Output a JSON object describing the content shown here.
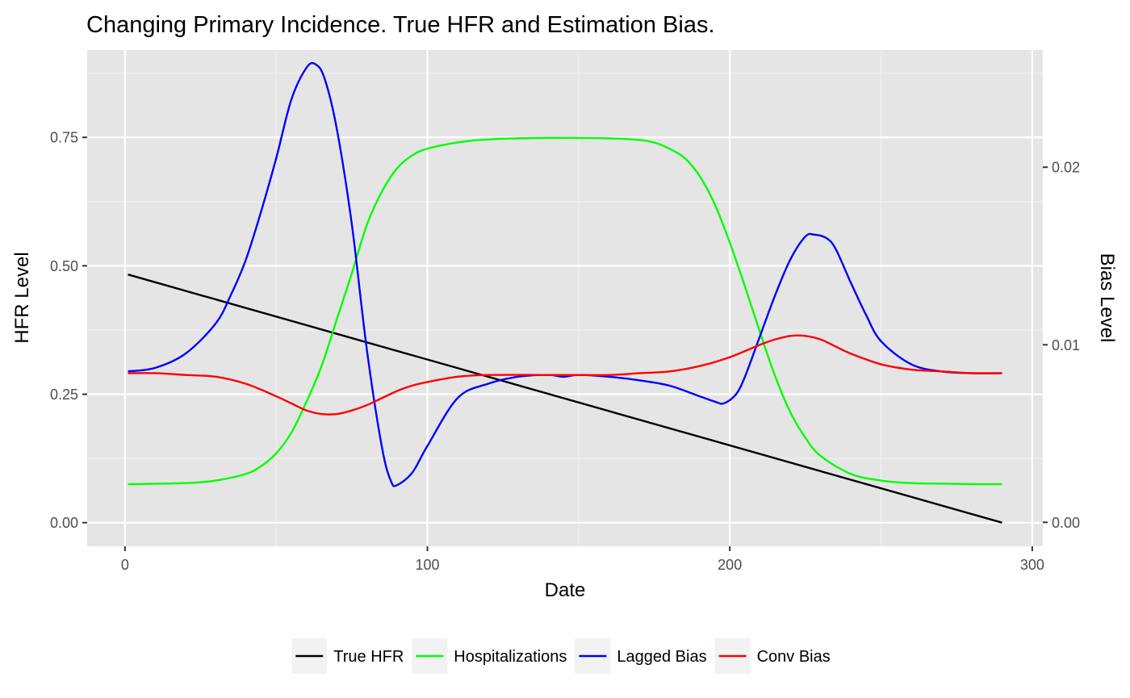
{
  "chart_data": {
    "type": "line",
    "title": "Changing Primary Incidence. True HFR and Estimation Bias.",
    "xlabel": "Date",
    "ylabel": "HFR Level",
    "y2label": "Bias Level",
    "xlim": [
      -12.5,
      303.5
    ],
    "ylim": [
      -0.046,
      0.92
    ],
    "y2lim": [
      -0.00135,
      0.0266
    ],
    "x_ticks": [
      0,
      100,
      200,
      300
    ],
    "y_ticks": [
      0.0,
      0.25,
      0.5,
      0.75
    ],
    "y_tick_labels": [
      "0.00",
      "0.25",
      "0.50",
      "0.75"
    ],
    "y2_ticks": [
      0.0,
      0.01,
      0.02
    ],
    "y2_tick_labels": [
      "0.00",
      "0.01",
      "0.02"
    ],
    "grid": true,
    "legend_position": "bottom",
    "legend": [
      "True HFR",
      "Hospitalizations",
      "Lagged Bias",
      "Conv Bias"
    ],
    "colors": {
      "panel": "#e5e5e5",
      "grid_major": "#ffffff",
      "grid_minor": "#f2f2f2",
      "tick": "#333333",
      "true_hfr": "#000000",
      "hospitalizations": "#00ff00",
      "lagged_bias": "#0000ff",
      "conv_bias": "#ff0000"
    },
    "series": [
      {
        "name": "True HFR",
        "axis": "left",
        "color": "#000000",
        "x": [
          1,
          290
        ],
        "y": [
          0.483,
          0.0
        ]
      },
      {
        "name": "Hospitalizations",
        "axis": "left",
        "color": "#00ff00",
        "x": [
          1,
          20,
          30,
          40,
          45,
          50,
          55,
          60,
          65,
          70,
          75,
          80,
          85,
          90,
          95,
          100,
          110,
          120,
          140,
          160,
          170,
          175,
          180,
          185,
          190,
          195,
          200,
          205,
          210,
          215,
          220,
          225,
          230,
          240,
          250,
          260,
          270,
          280,
          290
        ],
        "y": [
          0.075,
          0.077,
          0.082,
          0.095,
          0.11,
          0.135,
          0.175,
          0.235,
          0.305,
          0.395,
          0.485,
          0.58,
          0.645,
          0.69,
          0.715,
          0.728,
          0.74,
          0.746,
          0.749,
          0.748,
          0.745,
          0.74,
          0.728,
          0.71,
          0.675,
          0.62,
          0.545,
          0.46,
          0.37,
          0.285,
          0.215,
          0.165,
          0.13,
          0.095,
          0.082,
          0.077,
          0.076,
          0.075,
          0.075
        ]
      },
      {
        "name": "Lagged Bias",
        "axis": "right",
        "color": "#0000ff",
        "x": [
          1,
          10,
          20,
          30,
          35,
          40,
          45,
          50,
          55,
          60,
          63,
          66,
          70,
          75,
          80,
          85,
          88,
          90,
          95,
          100,
          110,
          120,
          130,
          140,
          145,
          150,
          160,
          170,
          180,
          190,
          195,
          198,
          202,
          205,
          210,
          215,
          220,
          225,
          228,
          232,
          235,
          240,
          245,
          250,
          260,
          270,
          280,
          290
        ],
        "y": [
          0.0085,
          0.0087,
          0.0095,
          0.0112,
          0.0128,
          0.0148,
          0.0175,
          0.0205,
          0.0238,
          0.0256,
          0.0258,
          0.025,
          0.0222,
          0.0168,
          0.0097,
          0.0042,
          0.0023,
          0.0021,
          0.0028,
          0.0043,
          0.007,
          0.0078,
          0.0082,
          0.0083,
          0.0082,
          0.0083,
          0.0082,
          0.008,
          0.0077,
          0.0071,
          0.0068,
          0.0067,
          0.0072,
          0.0082,
          0.0105,
          0.0128,
          0.0148,
          0.0161,
          0.0162,
          0.016,
          0.0154,
          0.0135,
          0.0117,
          0.0102,
          0.0089,
          0.0085,
          0.0084,
          0.0084
        ]
      },
      {
        "name": "Conv Bias",
        "axis": "right",
        "color": "#ff0000",
        "x": [
          1,
          10,
          20,
          30,
          40,
          50,
          55,
          60,
          65,
          70,
          75,
          80,
          85,
          90,
          95,
          100,
          110,
          120,
          140,
          160,
          170,
          180,
          190,
          200,
          210,
          215,
          220,
          225,
          230,
          235,
          240,
          250,
          260,
          270,
          280,
          290
        ],
        "y": [
          0.0084,
          0.0084,
          0.0083,
          0.0082,
          0.0078,
          0.0071,
          0.0067,
          0.0063,
          0.0061,
          0.0061,
          0.0063,
          0.0066,
          0.007,
          0.0074,
          0.0077,
          0.0079,
          0.0082,
          0.0083,
          0.0083,
          0.0083,
          0.0084,
          0.0085,
          0.0088,
          0.0093,
          0.01,
          0.0103,
          0.0105,
          0.0105,
          0.0103,
          0.0099,
          0.0095,
          0.0089,
          0.0086,
          0.0085,
          0.0084,
          0.0084
        ]
      }
    ]
  }
}
